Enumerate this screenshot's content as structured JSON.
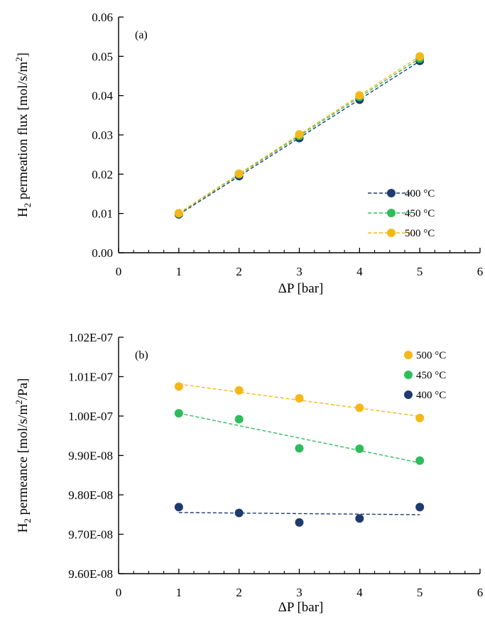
{
  "chart_data": [
    {
      "type": "scatter",
      "panel_label": "(a)",
      "xlabel": "ΔP [bar]",
      "ylabel": {
        "prefix": "H",
        "sub": "2",
        "mid": " permeation flux [mol/s/m",
        "sup": "2",
        "suffix": "]"
      },
      "xlim": [
        0,
        6
      ],
      "ylim": [
        0,
        0.06
      ],
      "x_ticks": [
        "0",
        "1",
        "2",
        "3",
        "4",
        "5",
        "6"
      ],
      "y_ticks": [
        "0.00",
        "0.01",
        "0.02",
        "0.03",
        "0.04",
        "0.05",
        "0.06"
      ],
      "legend_position": "bottom-right",
      "grid": false,
      "trendlines": "linear, dashed",
      "x": [
        1,
        2,
        3,
        4,
        5
      ],
      "series": [
        {
          "name": "400 °C",
          "color": "#1f3a6e",
          "values": [
            0.00977,
            0.01951,
            0.02919,
            0.03896,
            0.04885
          ]
        },
        {
          "name": "450 °C",
          "color": "#2dbd5c",
          "values": [
            0.01001,
            0.01998,
            0.02975,
            0.03967,
            0.04942
          ]
        },
        {
          "name": "500 °C",
          "color": "#f5b818",
          "values": [
            0.01008,
            0.02013,
            0.03014,
            0.04008,
            0.04997
          ]
        }
      ]
    },
    {
      "type": "scatter",
      "panel_label": "(b)",
      "xlabel": "ΔP [bar]",
      "ylabel": {
        "prefix": "H",
        "sub": "2",
        "mid": " permeance [mol/s/m",
        "sup": "2",
        "suffix": "/Pa]"
      },
      "xlim": [
        0,
        6
      ],
      "ylim": [
        9.6e-08,
        1.02e-07
      ],
      "x_ticks": [
        "0",
        "1",
        "2",
        "3",
        "4",
        "5",
        "6"
      ],
      "y_ticks": [
        "9.60E-08",
        "9.70E-08",
        "9.80E-08",
        "9.90E-08",
        "1.00E-07",
        "1.01E-07",
        "1.02E-07"
      ],
      "legend_position": "top-right",
      "grid": false,
      "trendlines": "linear, dashed",
      "x": [
        1,
        2,
        3,
        4,
        5
      ],
      "series": [
        {
          "name": "500 °C",
          "color": "#f5b818",
          "values": [
            1.0075e-07,
            1.0065e-07,
            1.0045e-07,
            1.0021e-07,
            9.995e-08
          ]
        },
        {
          "name": "450 °C",
          "color": "#2dbd5c",
          "values": [
            1.0007e-07,
            9.992e-08,
            9.918e-08,
            9.917e-08,
            9.887e-08
          ]
        },
        {
          "name": "400 °C",
          "color": "#1f3a6e",
          "values": [
            9.769e-08,
            9.754e-08,
            9.73e-08,
            9.74e-08,
            9.769e-08
          ]
        }
      ]
    }
  ]
}
